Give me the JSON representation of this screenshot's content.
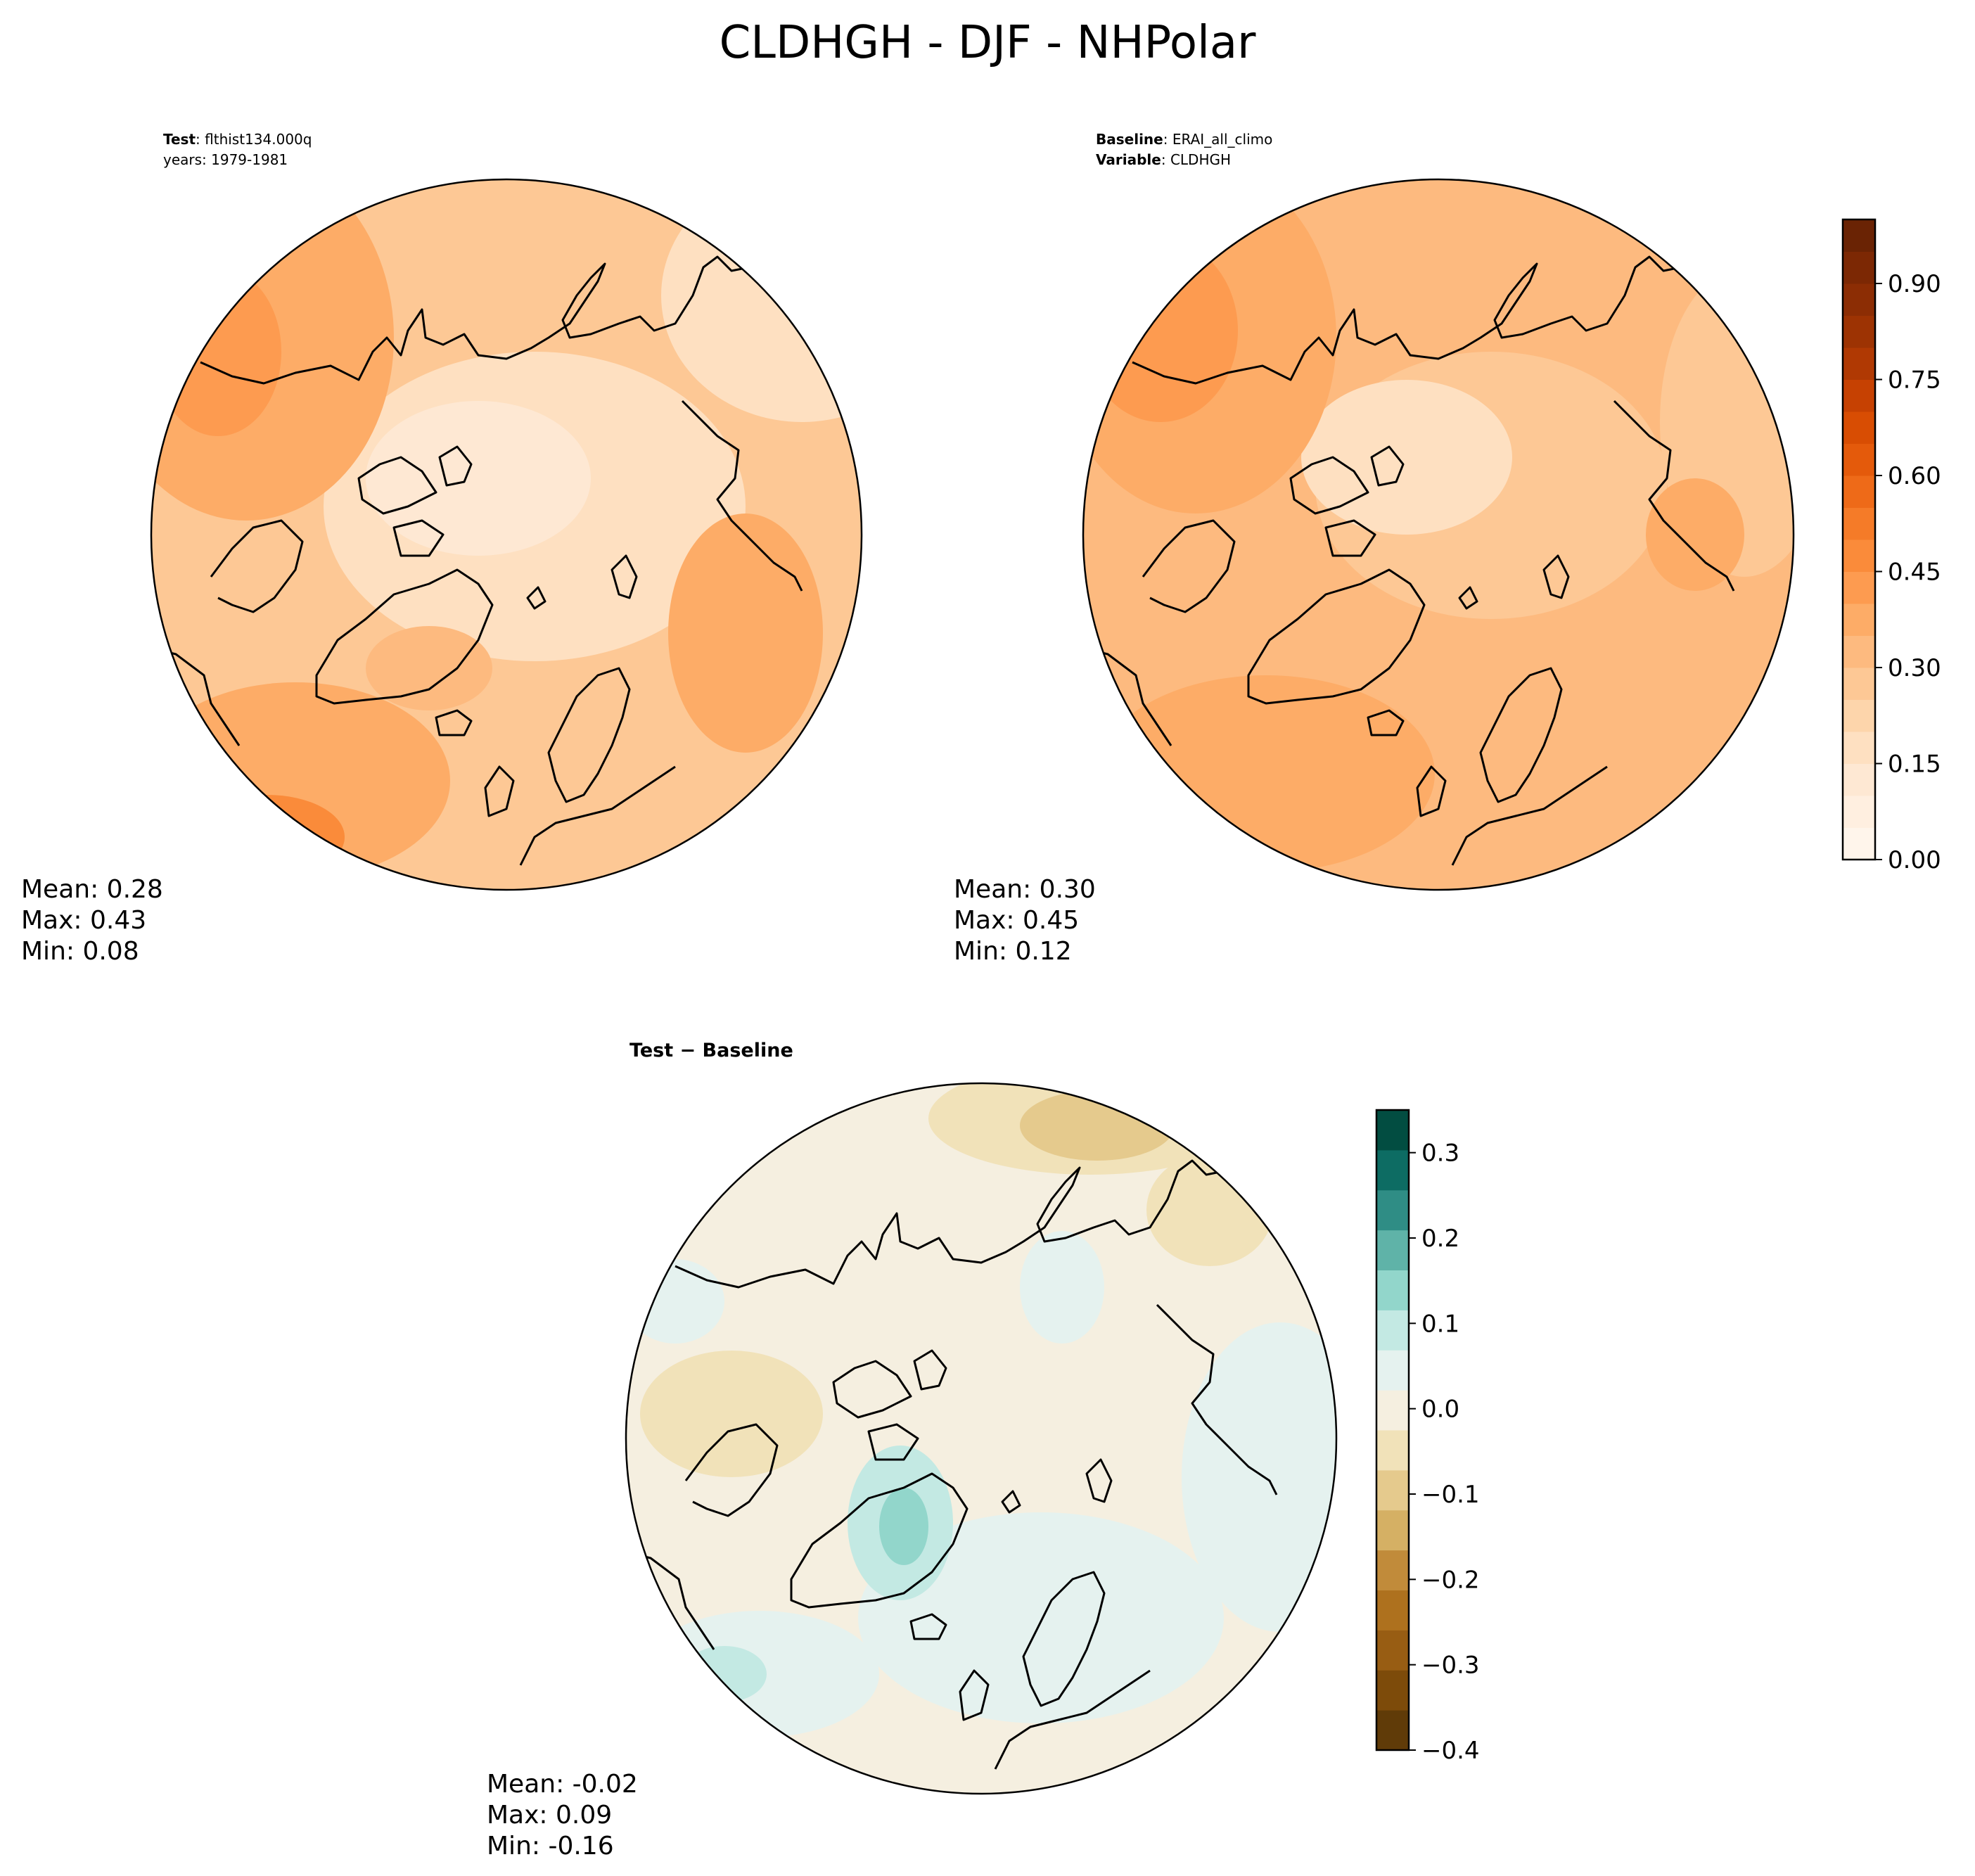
{
  "figure": {
    "title": "CLDHGH - DJF - NHPolar"
  },
  "panels": [
    {
      "id": "test",
      "header_lines": [
        {
          "key": "Test",
          "value": "flthist134.000q"
        },
        {
          "key": "",
          "value": "years: 1979-1981"
        }
      ],
      "stats": {
        "mean": "Mean:  0.28",
        "max": "Max:  0.43",
        "min": "Min:  0.08"
      }
    },
    {
      "id": "baseline",
      "header_lines": [
        {
          "key": "Baseline",
          "value": "ERAI_all_climo"
        },
        {
          "key": "Variable",
          "value": "CLDHGH"
        }
      ],
      "stats": {
        "mean": "Mean:  0.30",
        "max": "Max:  0.45",
        "min": "Min:  0.12"
      }
    },
    {
      "id": "difference",
      "header_lines": [
        {
          "key": "Test − Baseline",
          "value": ""
        }
      ],
      "stats": {
        "mean": "Mean: -0.02",
        "max": "Max:  0.09",
        "min": "Min: -0.16"
      }
    }
  ],
  "colorbars": {
    "main": {
      "colormap": "Oranges",
      "levels_min": 0.0,
      "levels_max": 1.0,
      "levels_step": 0.05,
      "ticks": [
        {
          "value": 0.0,
          "label": "0.00"
        },
        {
          "value": 0.15,
          "label": "0.15"
        },
        {
          "value": 0.3,
          "label": "0.30"
        },
        {
          "value": 0.45,
          "label": "0.45"
        },
        {
          "value": 0.6,
          "label": "0.60"
        },
        {
          "value": 0.75,
          "label": "0.75"
        },
        {
          "value": 0.9,
          "label": "0.90"
        }
      ],
      "colors": [
        "#fff5eb",
        "#ffefe0",
        "#fee8d3",
        "#fee0c1",
        "#fdd5ab",
        "#fdc895",
        "#fdba7f",
        "#fdac67",
        "#fd9b50",
        "#fa8b3a",
        "#f57b28",
        "#ee6a18",
        "#e45a0b",
        "#d84d03",
        "#c64102",
        "#b03903",
        "#9d3303",
        "#8c2d04",
        "#7c2804",
        "#6a2304"
      ]
    },
    "diff": {
      "colormap": "BrBG",
      "levels_min": -0.4,
      "levels_max": 0.35,
      "levels_step": 0.05,
      "ticks": [
        {
          "value": -0.4,
          "label": "−0.4"
        },
        {
          "value": -0.3,
          "label": "−0.3"
        },
        {
          "value": -0.2,
          "label": "−0.2"
        },
        {
          "value": -0.1,
          "label": "−0.1"
        },
        {
          "value": 0.0,
          "label": "0.0"
        },
        {
          "value": 0.1,
          "label": "0.1"
        },
        {
          "value": 0.2,
          "label": "0.2"
        },
        {
          "value": 0.3,
          "label": "0.3"
        }
      ],
      "colors": [
        "#603b08",
        "#7d4b0a",
        "#985d13",
        "#ae711e",
        "#c18b3a",
        "#d5b064",
        "#e5ca8d",
        "#f1e2b9",
        "#f5efe0",
        "#e5f2ef",
        "#c3e9e3",
        "#92d6cb",
        "#5fb3a8",
        "#2f8d85",
        "#0d6c63",
        "#024d41"
      ]
    }
  },
  "map_colors": {
    "coast": "#000000",
    "test_fill": [
      "#fee0c1",
      "#fdd5ab",
      "#fdc895",
      "#fdba7f",
      "#fdac67",
      "#fd9b50",
      "#fa8b3a"
    ],
    "diff_fill": [
      "#f5efe0",
      "#f1e2b9",
      "#e5ca8d",
      "#e5f2ef",
      "#c3e9e3",
      "#92d6cb"
    ]
  }
}
